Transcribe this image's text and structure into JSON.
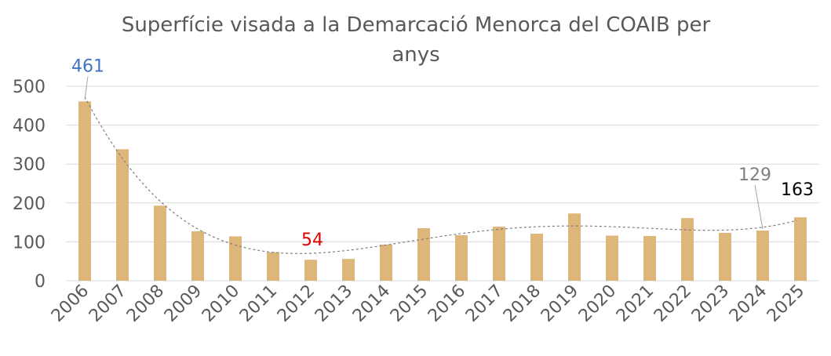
{
  "chart_data": {
    "type": "bar",
    "title_line1": "Superfície visada a la Demarcació Menorca del COAIB per",
    "title_line2": "anys",
    "categories": [
      "2006",
      "2007",
      "2008",
      "2009",
      "2010",
      "2011",
      "2012",
      "2013",
      "2014",
      "2015",
      "2016",
      "2017",
      "2018",
      "2019",
      "2020",
      "2021",
      "2022",
      "2023",
      "2024",
      "2025"
    ],
    "values": [
      461,
      338,
      193,
      127,
      114,
      73,
      54,
      56,
      93,
      135,
      117,
      139,
      121,
      173,
      116,
      115,
      161,
      123,
      129,
      163
    ],
    "ylim": [
      0,
      500
    ],
    "yticks": [
      0,
      100,
      200,
      300,
      400,
      500
    ],
    "grid": true,
    "trendline": "polynomial",
    "bar_color": "#deb67c",
    "data_labels": [
      {
        "category": "2006",
        "text": "461",
        "color": "#4472c4"
      },
      {
        "category": "2012",
        "text": "54",
        "color": "#e00000"
      },
      {
        "category": "2024",
        "text": "129",
        "color": "#7f7f7f"
      },
      {
        "category": "2025",
        "text": "163",
        "color": "#000000"
      }
    ]
  }
}
